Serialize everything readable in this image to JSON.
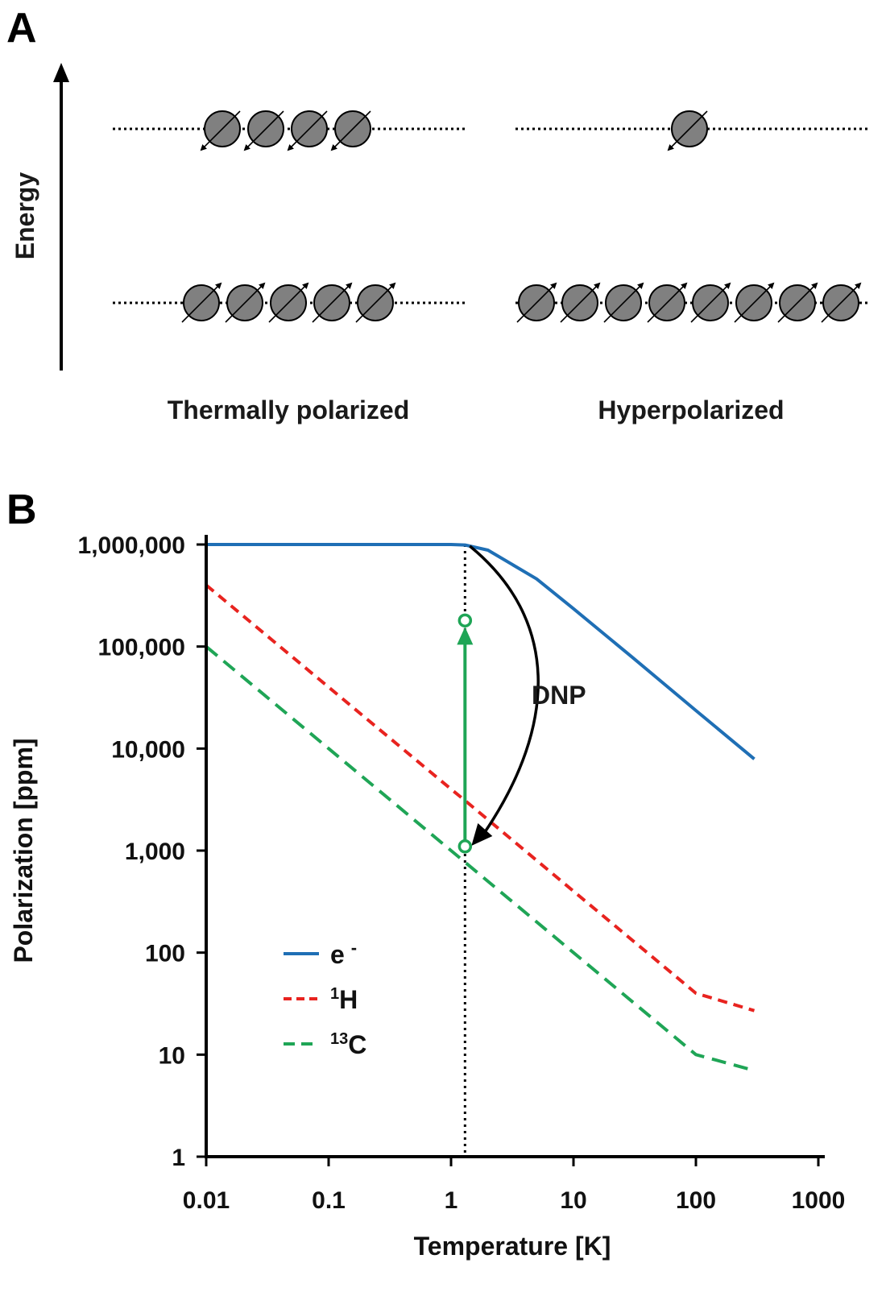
{
  "panel_a": {
    "letter": "A",
    "energy_label": "Energy",
    "left_caption": "Thermally polarized",
    "right_caption": "Hyperpolarized",
    "left_upper_spins": 4,
    "left_lower_spins": 5,
    "right_upper_spins": 1,
    "right_lower_spins": 8
  },
  "panel_b": {
    "letter": "B",
    "dnp_label": "DNP"
  },
  "chart_data": {
    "type": "line",
    "title": "",
    "xlabel": "Temperature [K]",
    "ylabel": "Polarization [ppm]",
    "xscale": "log",
    "yscale": "log",
    "xlim": [
      0.01,
      1000
    ],
    "ylim": [
      1,
      1000000
    ],
    "x_ticks": [
      0.01,
      0.1,
      1,
      10,
      100,
      1000
    ],
    "x_tick_labels": [
      "0.01",
      "0.1",
      "1",
      "10",
      "100",
      "1000"
    ],
    "y_ticks": [
      1,
      10,
      100,
      1000,
      10000,
      100000,
      1000000
    ],
    "y_tick_labels": [
      "1",
      "10",
      "100",
      "1,000",
      "10,000",
      "100,000",
      "1,000,000"
    ],
    "marker_temperature": 1.3,
    "series": [
      {
        "name": "e-",
        "legend_main": "e",
        "legend_sup": "-",
        "legend_sup_first": false,
        "color": "#1f6fb5",
        "style": "solid",
        "x": [
          0.01,
          0.1,
          1,
          1.3,
          2,
          5,
          10,
          30,
          100,
          300
        ],
        "y": [
          1000000,
          1000000,
          1000000,
          990000,
          880000,
          460000,
          235000,
          79000,
          23600,
          7900
        ]
      },
      {
        "name": "1H",
        "legend_main": "H",
        "legend_sup": "1",
        "legend_sup_first": true,
        "color": "#e8231f",
        "style": "dashed",
        "x": [
          0.01,
          0.1,
          1,
          1.3,
          10,
          100,
          300
        ],
        "y": [
          400000,
          40000,
          4000,
          3100,
          400,
          40,
          27
        ]
      },
      {
        "name": "13C",
        "legend_main": "C",
        "legend_sup": "13",
        "legend_sup_first": true,
        "color": "#1fa556",
        "style": "dashed",
        "x": [
          0.01,
          0.1,
          1,
          1.3,
          10,
          100,
          300
        ],
        "y": [
          100000,
          10000,
          1000,
          770,
          100,
          10,
          7
        ]
      }
    ],
    "annotations": [
      {
        "label": "DNP",
        "kind": "curved-arrow",
        "from": [
          1.3,
          1000000
        ],
        "to": [
          1.3,
          1000
        ]
      },
      {
        "kind": "arrow",
        "from": [
          1.3,
          1100
        ],
        "to": [
          1.3,
          180000
        ],
        "color": "#1fa556"
      }
    ],
    "legend_position": "lower-left"
  }
}
